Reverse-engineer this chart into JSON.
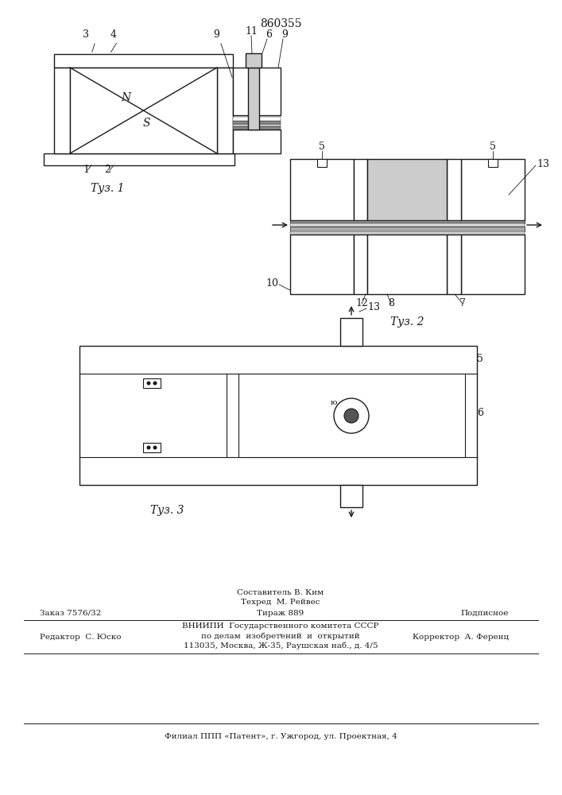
{
  "patent_number": "860355",
  "fig1_label": "Τуз. 1",
  "fig2_label": "Τуз. 2",
  "fig3_label": "Τуз. 3",
  "footer_editor": "Редактор  С. Юско",
  "footer_composer": "Составитель В. Ким",
  "footer_tech": "Техред  М. Рейвес",
  "footer_corrector": "Корректор  А. Ференц",
  "footer_order": "Заказ 7576/32",
  "footer_tirazh": "Тираж 889",
  "footer_podp": "Подписное",
  "footer_vniip1": "ВНИИПИ  Государственного комитета СССР",
  "footer_vniip2": "по делам  изобретений  и  открытий",
  "footer_vniip3": "113035, Москва, Ж-35, Раушская наб., д. 4/5",
  "footer_filial": "Филиал ППП «Патент», г. Ужгород, ул. Проектная, 4",
  "bg_color": "#ffffff",
  "lc": "#1a1a1a"
}
